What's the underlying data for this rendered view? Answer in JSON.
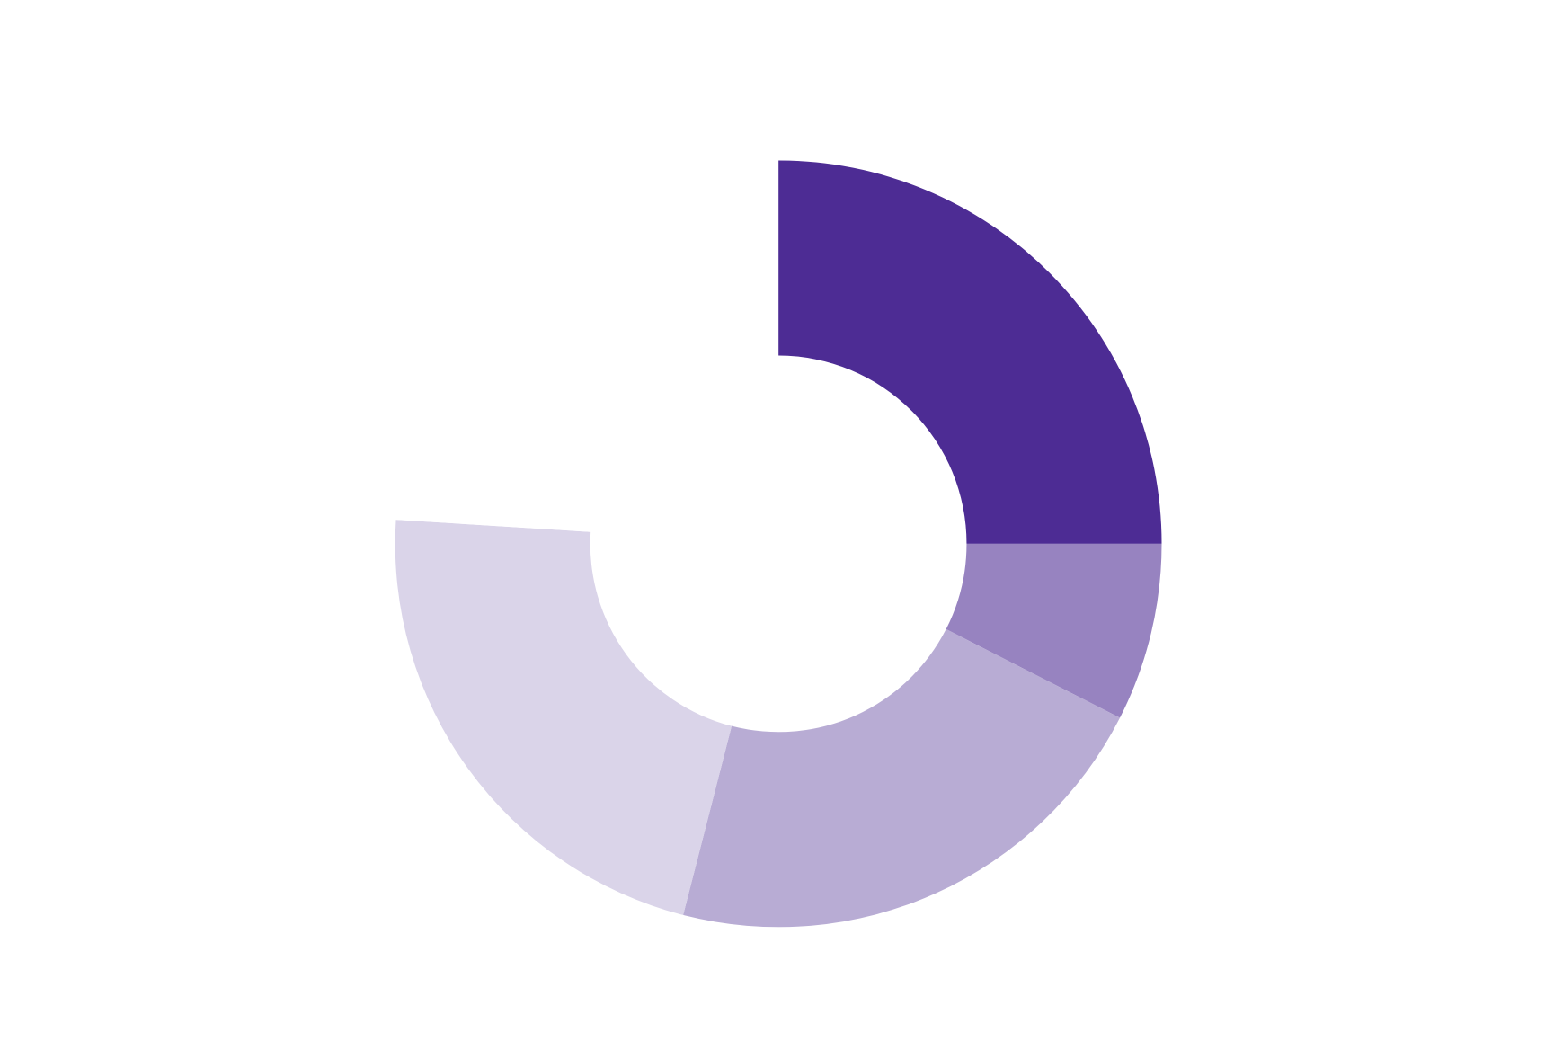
{
  "chart_data": {
    "type": "donut",
    "values": [
      25,
      7.5,
      21.5,
      22,
      24
    ],
    "colors": [
      "#4d2c94",
      "#9783c0",
      "#b8acd4",
      "#dad4e9",
      "#ffffff"
    ]
  }
}
